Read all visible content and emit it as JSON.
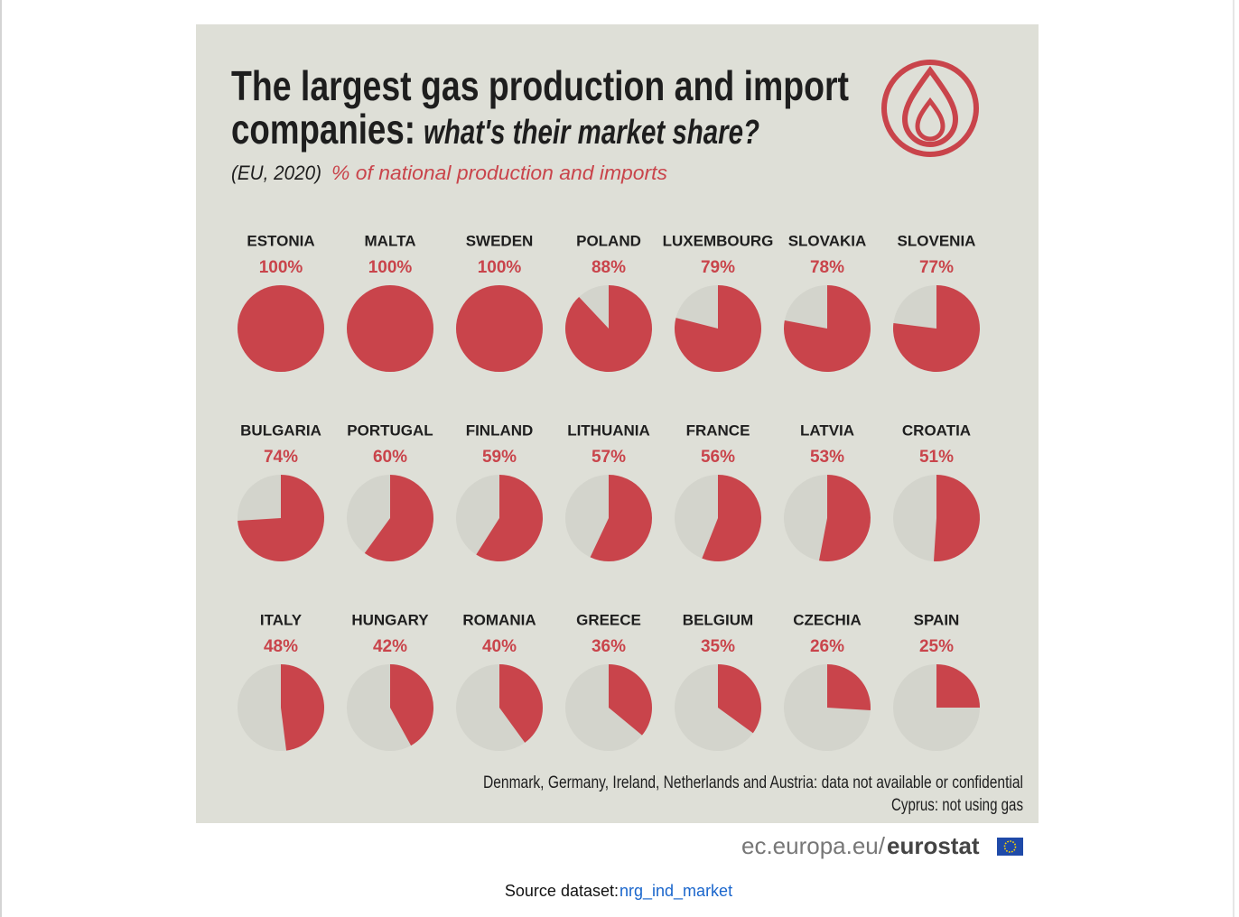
{
  "chart_data": {
    "type": "pie",
    "title_lines": [
      "The largest gas production and import",
      "companies:"
    ],
    "title_emphasis": "what's their market share?",
    "subtitle_scope": "(EU, 2020)",
    "subtitle": "% of national production and imports",
    "categories": [
      "ESTONIA",
      "MALTA",
      "SWEDEN",
      "POLAND",
      "LUXEMBOURG",
      "SLOVAKIA",
      "SLOVENIA",
      "BULGARIA",
      "PORTUGAL",
      "FINLAND",
      "LITHUANIA",
      "FRANCE",
      "LATVIA",
      "CROATIA",
      "ITALY",
      "HUNGARY",
      "ROMANIA",
      "GREECE",
      "BELGIUM",
      "CZECHIA",
      "SPAIN"
    ],
    "values": [
      100,
      100,
      100,
      88,
      79,
      78,
      77,
      74,
      60,
      59,
      57,
      56,
      53,
      51,
      48,
      42,
      40,
      36,
      35,
      26,
      25
    ],
    "value_labels": [
      "100%",
      "100%",
      "100%",
      "88%",
      "79%",
      "78%",
      "77%",
      "74%",
      "60%",
      "59%",
      "57%",
      "56%",
      "53%",
      "51%",
      "48%",
      "42%",
      "40%",
      "36%",
      "35%",
      "26%",
      "25%"
    ],
    "color": "#c9444b",
    "notes": [
      "Denmark, Germany, Ireland, Netherlands and Austria: data not available or confidential",
      "Cyprus: not using gas"
    ]
  },
  "footer": {
    "site": "ec.europa.eu/",
    "brand": "eurostat"
  },
  "source": {
    "label": "Source dataset:",
    "link": "nrg_ind_market"
  }
}
